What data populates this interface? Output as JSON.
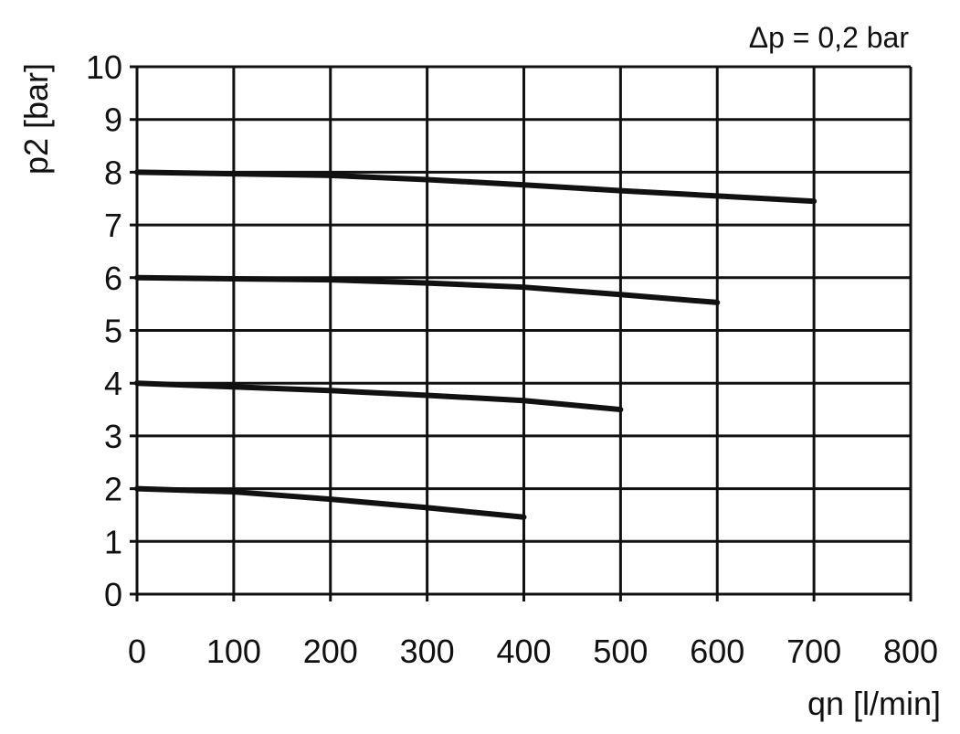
{
  "chart_data": {
    "type": "line",
    "title": "",
    "annotation": "Δp = 0,2 bar",
    "xlabel": "qn [l/min]",
    "ylabel": "p2 [bar]",
    "xlim": [
      0,
      800
    ],
    "ylim": [
      0,
      10
    ],
    "xticks": [
      "0",
      "100",
      "200",
      "300",
      "400",
      "500",
      "600",
      "700",
      "800"
    ],
    "yticks": [
      "0",
      "1",
      "2",
      "3",
      "4",
      "5",
      "6",
      "7",
      "8",
      "9",
      "10"
    ],
    "grid": true,
    "legend": "none",
    "line_color": "#111111",
    "series": [
      {
        "x": [
          0,
          100,
          200,
          300,
          400,
          500,
          600,
          700
        ],
        "y": [
          8.0,
          7.97,
          7.94,
          7.86,
          7.76,
          7.65,
          7.55,
          7.45
        ]
      },
      {
        "x": [
          0,
          100,
          200,
          300,
          400,
          500,
          600
        ],
        "y": [
          6.0,
          5.98,
          5.96,
          5.9,
          5.82,
          5.68,
          5.53
        ]
      },
      {
        "x": [
          0,
          100,
          200,
          300,
          400,
          500
        ],
        "y": [
          4.0,
          3.93,
          3.86,
          3.77,
          3.67,
          3.5
        ]
      },
      {
        "x": [
          0,
          100,
          200,
          300,
          400
        ],
        "y": [
          2.0,
          1.94,
          1.8,
          1.64,
          1.46
        ]
      }
    ]
  }
}
